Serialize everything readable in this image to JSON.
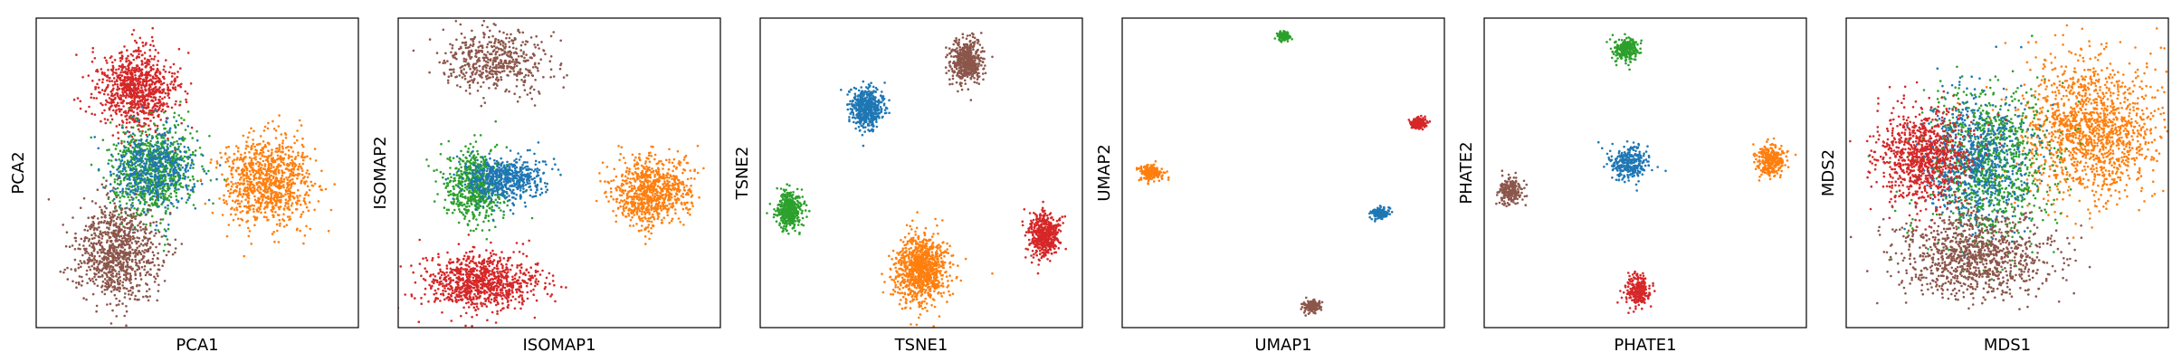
{
  "colors": {
    "blue": "#1f77b4",
    "orange": "#ff7f0e",
    "green": "#2ca02c",
    "red": "#d62728",
    "purple": "#9467bd",
    "brown": "#8c564b",
    "frame": "#000000"
  },
  "chart_data": [
    {
      "type": "scatter",
      "xlabel": "PCA1",
      "ylabel": "PCA2",
      "xlim": [
        0,
        1
      ],
      "ylim": [
        0,
        1
      ],
      "grid": false,
      "ticks": "none",
      "clusters": [
        {
          "color": "red",
          "cx": 0.31,
          "cy": 0.77,
          "sx": 0.06,
          "sy": 0.065,
          "n": 900
        },
        {
          "color": "green",
          "cx": 0.36,
          "cy": 0.51,
          "sx": 0.065,
          "sy": 0.075,
          "n": 800
        },
        {
          "color": "blue",
          "cx": 0.36,
          "cy": 0.51,
          "sx": 0.065,
          "sy": 0.065,
          "n": 500
        },
        {
          "color": "orange",
          "cx": 0.72,
          "cy": 0.47,
          "sx": 0.07,
          "sy": 0.07,
          "n": 900
        },
        {
          "color": "brown",
          "cx": 0.25,
          "cy": 0.24,
          "sx": 0.065,
          "sy": 0.075,
          "n": 900
        }
      ]
    },
    {
      "type": "scatter",
      "xlabel": "ISOMAP1",
      "ylabel": "ISOMAP2",
      "xlim": [
        0,
        1
      ],
      "ylim": [
        0,
        1
      ],
      "grid": false,
      "ticks": "none",
      "clusters": [
        {
          "color": "brown",
          "cx": 0.3,
          "cy": 0.86,
          "sx": 0.08,
          "sy": 0.05,
          "n": 500
        },
        {
          "color": "green",
          "cx": 0.24,
          "cy": 0.46,
          "sx": 0.045,
          "sy": 0.06,
          "n": 600
        },
        {
          "color": "blue",
          "cx": 0.33,
          "cy": 0.48,
          "sx": 0.06,
          "sy": 0.035,
          "n": 600
        },
        {
          "color": "orange",
          "cx": 0.79,
          "cy": 0.44,
          "sx": 0.06,
          "sy": 0.055,
          "n": 800
        },
        {
          "color": "red",
          "cx": 0.26,
          "cy": 0.15,
          "sx": 0.085,
          "sy": 0.045,
          "n": 900
        }
      ]
    },
    {
      "type": "scatter",
      "xlabel": "TSNE1",
      "ylabel": "TSNE2",
      "xlim": [
        0,
        1
      ],
      "ylim": [
        0,
        1
      ],
      "grid": false,
      "ticks": "none",
      "clusters": [
        {
          "color": "brown",
          "cx": 0.64,
          "cy": 0.86,
          "sx": 0.025,
          "sy": 0.035,
          "n": 500
        },
        {
          "color": "blue",
          "cx": 0.33,
          "cy": 0.71,
          "sx": 0.025,
          "sy": 0.032,
          "n": 500
        },
        {
          "color": "green",
          "cx": 0.09,
          "cy": 0.38,
          "sx": 0.02,
          "sy": 0.03,
          "n": 400
        },
        {
          "color": "orange",
          "cx": 0.5,
          "cy": 0.19,
          "sx": 0.04,
          "sy": 0.055,
          "n": 900
        },
        {
          "color": "red",
          "cx": 0.88,
          "cy": 0.3,
          "sx": 0.025,
          "sy": 0.035,
          "n": 500
        }
      ]
    },
    {
      "type": "scatter",
      "xlabel": "UMAP1",
      "ylabel": "UMAP2",
      "xlim": [
        0,
        1
      ],
      "ylim": [
        0,
        1
      ],
      "grid": false,
      "ticks": "none",
      "clusters": [
        {
          "color": "green",
          "cx": 0.5,
          "cy": 0.94,
          "sx": 0.01,
          "sy": 0.008,
          "n": 150
        },
        {
          "color": "red",
          "cx": 0.92,
          "cy": 0.66,
          "sx": 0.012,
          "sy": 0.009,
          "n": 150
        },
        {
          "color": "orange",
          "cx": 0.09,
          "cy": 0.5,
          "sx": 0.018,
          "sy": 0.012,
          "n": 220
        },
        {
          "color": "blue",
          "cx": 0.8,
          "cy": 0.37,
          "sx": 0.014,
          "sy": 0.009,
          "n": 180
        },
        {
          "color": "brown",
          "cx": 0.59,
          "cy": 0.07,
          "sx": 0.012,
          "sy": 0.009,
          "n": 150
        }
      ]
    },
    {
      "type": "scatter",
      "xlabel": "PHATE1",
      "ylabel": "PHATE2",
      "xlim": [
        0,
        1
      ],
      "ylim": [
        0,
        1
      ],
      "grid": false,
      "ticks": "none",
      "clusters": [
        {
          "color": "green",
          "cx": 0.44,
          "cy": 0.9,
          "sx": 0.02,
          "sy": 0.02,
          "n": 250
        },
        {
          "color": "orange",
          "cx": 0.89,
          "cy": 0.54,
          "sx": 0.022,
          "sy": 0.025,
          "n": 300
        },
        {
          "color": "blue",
          "cx": 0.45,
          "cy": 0.53,
          "sx": 0.03,
          "sy": 0.025,
          "n": 300
        },
        {
          "color": "brown",
          "cx": 0.08,
          "cy": 0.44,
          "sx": 0.018,
          "sy": 0.022,
          "n": 200
        },
        {
          "color": "red",
          "cx": 0.48,
          "cy": 0.12,
          "sx": 0.018,
          "sy": 0.025,
          "n": 250
        }
      ]
    },
    {
      "type": "scatter",
      "xlabel": "MDS1",
      "ylabel": "MDS2",
      "xlim": [
        0,
        1
      ],
      "ylim": [
        0,
        1
      ],
      "grid": false,
      "ticks": "none",
      "clusters": [
        {
          "color": "orange",
          "cx": 0.76,
          "cy": 0.64,
          "sx": 0.11,
          "sy": 0.11,
          "n": 1400
        },
        {
          "color": "green",
          "cx": 0.44,
          "cy": 0.52,
          "sx": 0.1,
          "sy": 0.13,
          "n": 1000
        },
        {
          "color": "blue",
          "cx": 0.4,
          "cy": 0.55,
          "sx": 0.08,
          "sy": 0.1,
          "n": 700
        },
        {
          "color": "red",
          "cx": 0.24,
          "cy": 0.55,
          "sx": 0.07,
          "sy": 0.08,
          "n": 900
        },
        {
          "color": "brown",
          "cx": 0.4,
          "cy": 0.23,
          "sx": 0.12,
          "sy": 0.065,
          "n": 1000
        }
      ]
    }
  ]
}
